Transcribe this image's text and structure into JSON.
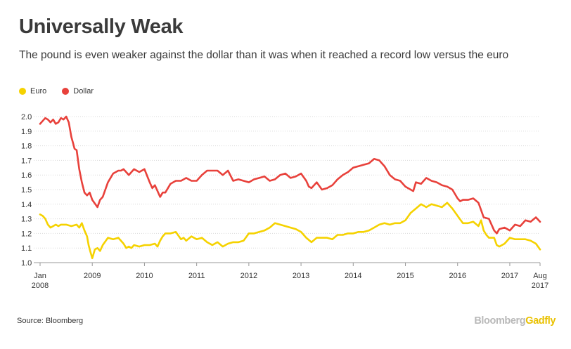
{
  "title": "Universally Weak",
  "subtitle": "The pound is even weaker against the dollar than it was when it reached a record low versus the euro",
  "legend": [
    {
      "name": "Euro",
      "color": "#F5D200"
    },
    {
      "name": "Dollar",
      "color": "#E8413B"
    }
  ],
  "source": "Source: Bloomberg",
  "brand": {
    "part1": "Bloomberg",
    "part2": "Gadfly"
  },
  "chart_data": {
    "type": "line",
    "title": "Universally Weak",
    "ylim": [
      1.0,
      2.0
    ],
    "y_ticks": [
      "1.0",
      "1.1",
      "1.2",
      "1.3",
      "1.4",
      "1.5",
      "1.6",
      "1.7",
      "1.8",
      "1.9",
      "2.0"
    ],
    "x_ticks": [
      {
        "x": 2008.0,
        "line1": "Jan",
        "line2": "2008"
      },
      {
        "x": 2009.0,
        "line1": "2009"
      },
      {
        "x": 2010.0,
        "line1": "2010"
      },
      {
        "x": 2011.0,
        "line1": "2011"
      },
      {
        "x": 2012.0,
        "line1": "2012"
      },
      {
        "x": 2013.0,
        "line1": "2013"
      },
      {
        "x": 2014.0,
        "line1": "2014"
      },
      {
        "x": 2015.0,
        "line1": "2015"
      },
      {
        "x": 2016.0,
        "line1": "2016"
      },
      {
        "x": 2017.0,
        "line1": "2017"
      },
      {
        "x": 2017.58,
        "line1": "Aug",
        "line2": "2017"
      }
    ],
    "grid": true,
    "legend_position": "top-left",
    "xlim": [
      2008.0,
      2017.58
    ],
    "series": [
      {
        "name": "Euro",
        "color": "#F5D200",
        "x": [
          2008.0,
          2008.05,
          2008.1,
          2008.15,
          2008.2,
          2008.25,
          2008.3,
          2008.35,
          2008.4,
          2008.5,
          2008.6,
          2008.7,
          2008.75,
          2008.8,
          2008.85,
          2008.9,
          2008.93,
          2008.96,
          2009.0,
          2009.05,
          2009.1,
          2009.15,
          2009.2,
          2009.3,
          2009.4,
          2009.5,
          2009.6,
          2009.65,
          2009.7,
          2009.75,
          2009.8,
          2009.9,
          2010.0,
          2010.1,
          2010.2,
          2010.25,
          2010.3,
          2010.35,
          2010.4,
          2010.5,
          2010.6,
          2010.7,
          2010.75,
          2010.8,
          2010.9,
          2011.0,
          2011.1,
          2011.2,
          2011.3,
          2011.4,
          2011.5,
          2011.6,
          2011.7,
          2011.8,
          2011.9,
          2012.0,
          2012.1,
          2012.2,
          2012.3,
          2012.4,
          2012.5,
          2012.6,
          2012.7,
          2012.8,
          2012.9,
          2013.0,
          2013.1,
          2013.2,
          2013.3,
          2013.4,
          2013.5,
          2013.6,
          2013.7,
          2013.8,
          2013.9,
          2014.0,
          2014.1,
          2014.2,
          2014.3,
          2014.4,
          2014.5,
          2014.6,
          2014.7,
          2014.8,
          2014.9,
          2015.0,
          2015.1,
          2015.2,
          2015.3,
          2015.4,
          2015.5,
          2015.6,
          2015.7,
          2015.8,
          2015.9,
          2016.0,
          2016.1,
          2016.2,
          2016.3,
          2016.4,
          2016.45,
          2016.5,
          2016.55,
          2016.6,
          2016.7,
          2016.75,
          2016.8,
          2016.9,
          2017.0,
          2017.1,
          2017.2,
          2017.3,
          2017.4,
          2017.5,
          2017.58
        ],
        "y": [
          1.33,
          1.32,
          1.3,
          1.26,
          1.24,
          1.25,
          1.26,
          1.25,
          1.26,
          1.26,
          1.25,
          1.26,
          1.24,
          1.27,
          1.22,
          1.18,
          1.12,
          1.08,
          1.03,
          1.09,
          1.1,
          1.08,
          1.12,
          1.17,
          1.16,
          1.17,
          1.13,
          1.1,
          1.11,
          1.1,
          1.12,
          1.11,
          1.12,
          1.12,
          1.13,
          1.11,
          1.15,
          1.18,
          1.2,
          1.2,
          1.21,
          1.16,
          1.17,
          1.15,
          1.18,
          1.16,
          1.17,
          1.14,
          1.12,
          1.14,
          1.11,
          1.13,
          1.14,
          1.14,
          1.15,
          1.2,
          1.2,
          1.21,
          1.22,
          1.24,
          1.27,
          1.26,
          1.25,
          1.24,
          1.23,
          1.21,
          1.17,
          1.14,
          1.17,
          1.17,
          1.17,
          1.16,
          1.19,
          1.19,
          1.2,
          1.2,
          1.21,
          1.21,
          1.22,
          1.24,
          1.26,
          1.27,
          1.26,
          1.27,
          1.27,
          1.29,
          1.34,
          1.37,
          1.4,
          1.38,
          1.4,
          1.39,
          1.38,
          1.41,
          1.37,
          1.32,
          1.27,
          1.27,
          1.28,
          1.25,
          1.29,
          1.22,
          1.19,
          1.17,
          1.17,
          1.12,
          1.11,
          1.13,
          1.17,
          1.16,
          1.16,
          1.16,
          1.15,
          1.13,
          1.09
        ]
      },
      {
        "name": "Dollar",
        "color": "#E8413B",
        "x": [
          2008.0,
          2008.05,
          2008.1,
          2008.15,
          2008.2,
          2008.25,
          2008.3,
          2008.35,
          2008.4,
          2008.45,
          2008.5,
          2008.55,
          2008.6,
          2008.63,
          2008.66,
          2008.7,
          2008.75,
          2008.8,
          2008.85,
          2008.9,
          2008.95,
          2009.0,
          2009.1,
          2009.15,
          2009.2,
          2009.3,
          2009.4,
          2009.5,
          2009.55,
          2009.6,
          2009.7,
          2009.8,
          2009.9,
          2010.0,
          2010.1,
          2010.15,
          2010.2,
          2010.3,
          2010.35,
          2010.4,
          2010.5,
          2010.6,
          2010.7,
          2010.8,
          2010.9,
          2011.0,
          2011.1,
          2011.2,
          2011.3,
          2011.4,
          2011.5,
          2011.6,
          2011.7,
          2011.8,
          2011.9,
          2012.0,
          2012.1,
          2012.2,
          2012.3,
          2012.4,
          2012.5,
          2012.6,
          2012.7,
          2012.8,
          2012.9,
          2013.0,
          2013.1,
          2013.15,
          2013.2,
          2013.3,
          2013.4,
          2013.5,
          2013.6,
          2013.7,
          2013.8,
          2013.9,
          2014.0,
          2014.1,
          2014.2,
          2014.3,
          2014.4,
          2014.5,
          2014.55,
          2014.6,
          2014.7,
          2014.8,
          2014.9,
          2015.0,
          2015.1,
          2015.15,
          2015.2,
          2015.3,
          2015.4,
          2015.5,
          2015.6,
          2015.7,
          2015.8,
          2015.9,
          2016.0,
          2016.05,
          2016.1,
          2016.2,
          2016.3,
          2016.4,
          2016.45,
          2016.5,
          2016.6,
          2016.7,
          2016.75,
          2016.8,
          2016.9,
          2017.0,
          2017.1,
          2017.2,
          2017.3,
          2017.4,
          2017.5,
          2017.58
        ],
        "y": [
          1.95,
          1.97,
          1.99,
          1.98,
          1.96,
          1.98,
          1.95,
          1.96,
          1.99,
          1.98,
          2.0,
          1.96,
          1.86,
          1.82,
          1.78,
          1.77,
          1.64,
          1.55,
          1.48,
          1.46,
          1.48,
          1.43,
          1.38,
          1.43,
          1.45,
          1.55,
          1.61,
          1.63,
          1.63,
          1.64,
          1.6,
          1.64,
          1.62,
          1.64,
          1.55,
          1.51,
          1.53,
          1.45,
          1.48,
          1.48,
          1.54,
          1.56,
          1.56,
          1.58,
          1.56,
          1.56,
          1.6,
          1.63,
          1.63,
          1.63,
          1.6,
          1.63,
          1.56,
          1.57,
          1.56,
          1.55,
          1.57,
          1.58,
          1.59,
          1.56,
          1.57,
          1.6,
          1.61,
          1.58,
          1.59,
          1.61,
          1.56,
          1.52,
          1.51,
          1.55,
          1.5,
          1.51,
          1.53,
          1.57,
          1.6,
          1.62,
          1.65,
          1.66,
          1.67,
          1.68,
          1.71,
          1.7,
          1.68,
          1.66,
          1.6,
          1.57,
          1.56,
          1.52,
          1.5,
          1.49,
          1.55,
          1.54,
          1.58,
          1.56,
          1.55,
          1.53,
          1.52,
          1.5,
          1.44,
          1.42,
          1.43,
          1.43,
          1.44,
          1.41,
          1.36,
          1.31,
          1.3,
          1.22,
          1.2,
          1.23,
          1.24,
          1.22,
          1.26,
          1.25,
          1.29,
          1.28,
          1.31,
          1.28
        ]
      }
    ]
  }
}
